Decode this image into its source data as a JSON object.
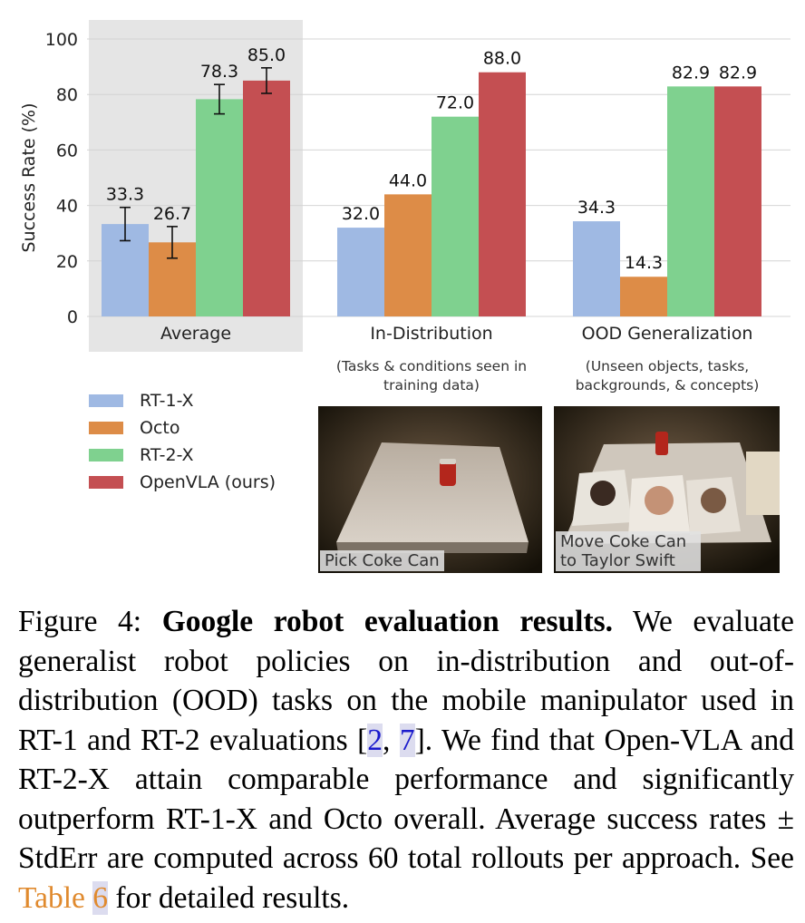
{
  "chart_data": {
    "type": "bar",
    "categories": [
      "Average",
      "In-Distribution",
      "OOD Generalization"
    ],
    "category_sublabels": [
      "",
      "(Tasks & conditions seen in training data)",
      "(Unseen objects, tasks, backgrounds, & concepts)"
    ],
    "series": [
      {
        "name": "RT-1-X",
        "color": "#9fb9e3",
        "values": [
          33.3,
          32.0,
          34.3
        ],
        "value_labels": [
          "33.3",
          "32.0",
          "34.3"
        ],
        "errors": [
          6.0,
          null,
          null
        ]
      },
      {
        "name": "Octo",
        "color": "#dd8c47",
        "values": [
          26.7,
          44.0,
          14.3
        ],
        "value_labels": [
          "26.7",
          "44.0",
          "14.3"
        ],
        "errors": [
          5.7,
          null,
          null
        ]
      },
      {
        "name": "RT-2-X",
        "color": "#7fd18f",
        "values": [
          78.3,
          72.0,
          82.9
        ],
        "value_labels": [
          "78.3",
          "72.0",
          "82.9"
        ],
        "errors": [
          5.3,
          null,
          null
        ]
      },
      {
        "name": "OpenVLA (ours)",
        "color": "#c44f52",
        "values": [
          85.0,
          88.0,
          82.9
        ],
        "value_labels": [
          "85.0",
          "88.0",
          "82.9"
        ],
        "errors": [
          4.6,
          null,
          null
        ]
      }
    ],
    "ylabel": "Success Rate (%)",
    "xlabel": "",
    "ylim": [
      0,
      100
    ],
    "yticks": [
      0,
      20,
      40,
      60,
      80,
      100
    ],
    "grid": true,
    "highlight_category": "Average",
    "legend": [
      "RT-1-X",
      "Octo",
      "RT-2-X",
      "OpenVLA (ours)"
    ],
    "legend_position": "bottom-left"
  },
  "photos": [
    {
      "caption": "Pick Coke Can"
    },
    {
      "caption": "Move Coke Can to Taylor Swift"
    }
  ],
  "caption": {
    "label": "Figure 4:",
    "bold_title": "Google robot evaluation results.",
    "text_1": "We evaluate generalist robot policies on in-distribution and out-of-distribution (OOD) tasks on the mobile manipulator used in RT-1 and RT-2 evaluations [",
    "cite_1": "2",
    "cite_sep": ", ",
    "cite_2": "7",
    "text_2": "]. We find that Open-VLA and RT-2-X attain comparable performance and significantly outperform RT-1-X and Octo overall. Average success rates ± StdErr are computed across 60 total rollouts per approach. See ",
    "table_link_word": "Table",
    "table_link_num": "6",
    "text_3": " for detailed results."
  }
}
